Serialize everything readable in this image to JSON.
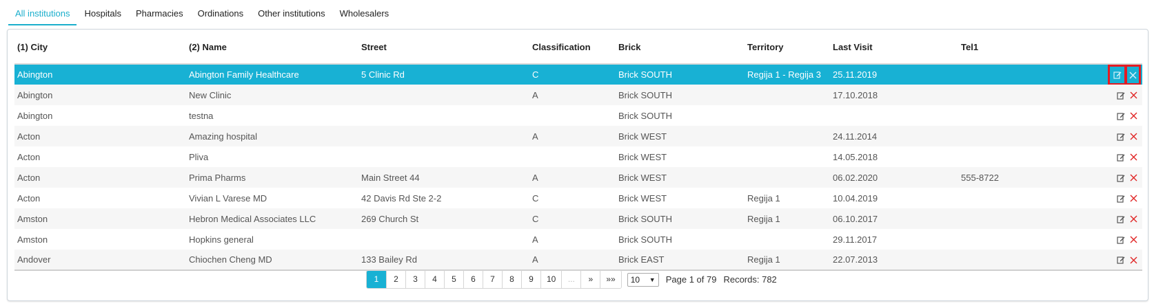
{
  "tabs": [
    "All institutions",
    "Hospitals",
    "Pharmacies",
    "Ordinations",
    "Other institutions",
    "Wholesalers"
  ],
  "columns": [
    "(1) City",
    "(2) Name",
    "Street",
    "Classification",
    "Brick",
    "Territory",
    "Last Visit",
    "Tel1"
  ],
  "rows": [
    [
      "Abington",
      "Abington Family Healthcare",
      "5 Clinic Rd",
      "C",
      "Brick SOUTH",
      "Regija 1 - Regija 3",
      "25.11.2019",
      ""
    ],
    [
      "Abington",
      "New Clinic",
      "",
      "A",
      "Brick SOUTH",
      "",
      "17.10.2018",
      ""
    ],
    [
      "Abington",
      "testna",
      "",
      "",
      "Brick SOUTH",
      "",
      "",
      ""
    ],
    [
      "Acton",
      "Amazing hospital",
      "",
      "A",
      "Brick WEST",
      "",
      "24.11.2014",
      ""
    ],
    [
      "Acton",
      "Pliva",
      "",
      "",
      "Brick WEST",
      "",
      "14.05.2018",
      ""
    ],
    [
      "Acton",
      "Prima Pharms",
      "Main Street 44",
      "A",
      "Brick WEST",
      "",
      "06.02.2020",
      "555-8722"
    ],
    [
      "Acton",
      "Vivian L Varese MD",
      "42 Davis Rd Ste 2-2",
      "C",
      "Brick WEST",
      "Regija 1",
      "10.04.2019",
      ""
    ],
    [
      "Amston",
      "Hebron Medical Associates LLC",
      "269 Church St",
      "C",
      "Brick SOUTH",
      "Regija 1",
      "06.10.2017",
      ""
    ],
    [
      "Amston",
      "Hopkins general",
      "",
      "A",
      "Brick SOUTH",
      "",
      "29.11.2017",
      ""
    ],
    [
      "Andover",
      "Chiochen Cheng MD",
      "133 Bailey Rd",
      "A",
      "Brick EAST",
      "Regija 1",
      "22.07.2013",
      ""
    ]
  ],
  "pager": {
    "pages": [
      "1",
      "2",
      "3",
      "4",
      "5",
      "6",
      "7",
      "8",
      "9",
      "10",
      "...",
      "»",
      "»»"
    ],
    "page_size": "10",
    "page_info": "Page 1 of 79",
    "records": "Records: 782"
  },
  "colors": {
    "accent": "#18b1d4",
    "highlight": "#e31b23",
    "delete": "#e02424"
  },
  "icons": {
    "edit": "edit-icon",
    "delete": "delete-icon",
    "dropdown": "caret-down-icon"
  }
}
